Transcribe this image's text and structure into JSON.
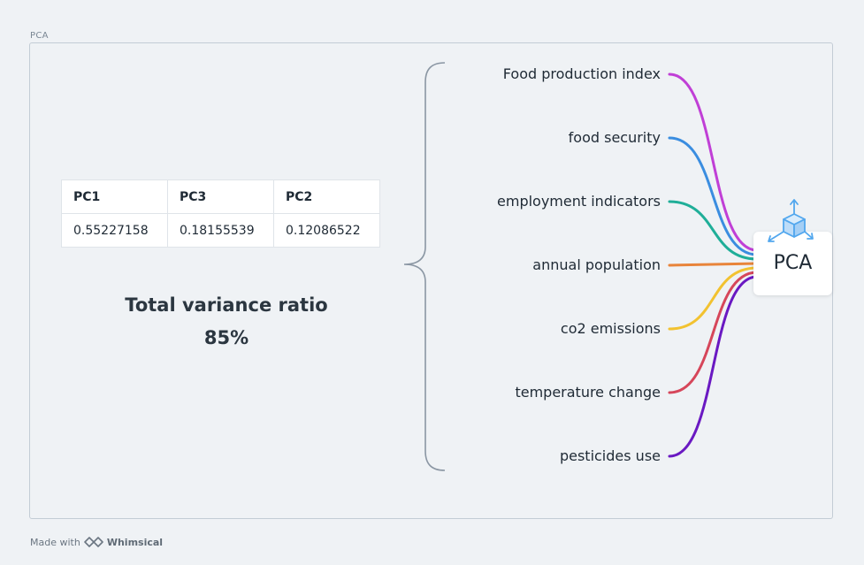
{
  "frame": {
    "label": "PCA"
  },
  "table": {
    "headers": [
      "PC1",
      "PC3",
      "PC2"
    ],
    "values": [
      "0.55227158",
      "0.18155539",
      "0.12086522"
    ]
  },
  "summary": {
    "line1": "Total variance ratio",
    "line2": "85%"
  },
  "items": [
    {
      "label": "Food production index",
      "color": "#c03fd6"
    },
    {
      "label": "food security",
      "color": "#3a8de0"
    },
    {
      "label": "employment indicators",
      "color": "#1fae98"
    },
    {
      "label": "annual population",
      "color": "#e8843a"
    },
    {
      "label": "co2 emissions",
      "color": "#f2c230"
    },
    {
      "label": "temperature change",
      "color": "#d6465a"
    },
    {
      "label": "pesticides use",
      "color": "#6a19c2"
    }
  ],
  "node": {
    "label": "PCA",
    "icon": "cube-axes-icon",
    "icon_color": "#52a7ee"
  },
  "footer": {
    "prefix": "Made with",
    "brand": "Whimsical",
    "icon": "whimsical-logo-icon"
  }
}
